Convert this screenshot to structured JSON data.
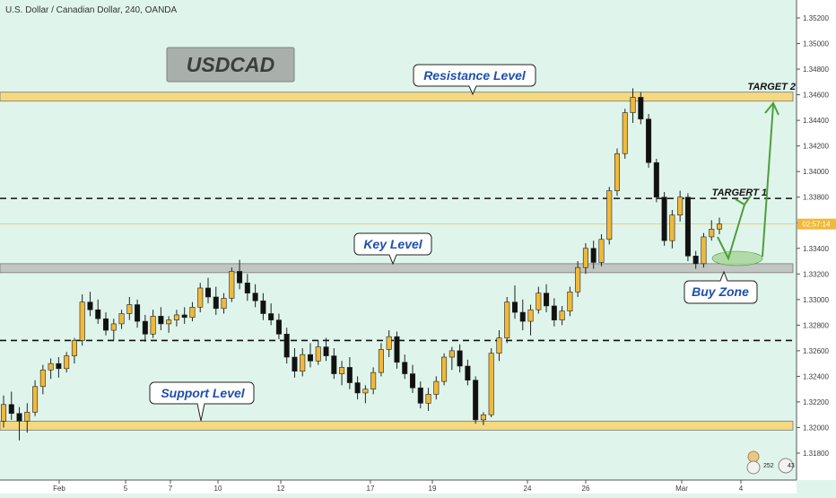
{
  "header": {
    "symbol_line": "U.S. Dollar / Canadian Dollar, 240, OANDA"
  },
  "title_box": {
    "text": "USDCAD"
  },
  "annotations": {
    "resistance": "Resistance Level",
    "key": "Key Level",
    "support": "Support Level",
    "buy_zone": "Buy Zone",
    "target1": "TARGERT 1",
    "target2": "TARGET 2"
  },
  "price_label": "02:57:14",
  "badges": {
    "likes": "252",
    "comments": "43"
  },
  "colors": {
    "background": "#dff5ec",
    "bull": "#f0b93a",
    "bear": "#111111",
    "zone_yellow": "#f5d77a",
    "zone_grey": "#bfc3c0",
    "arrow_green": "#4f9e3a",
    "callout_text": "#1e4fae"
  },
  "chart_data": {
    "type": "candlestick",
    "symbol": "USDCAD",
    "timeframe": "240",
    "source": "OANDA",
    "x_tick_labels": [
      "Feb",
      "5",
      "7",
      "10",
      "12",
      "17",
      "19",
      "24",
      "26",
      "Mar",
      "4"
    ],
    "y_tick_labels": [
      "1.35200",
      "1.35000",
      "1.34800",
      "1.34600",
      "1.34400",
      "1.34200",
      "1.34000",
      "1.33800",
      "1.33600",
      "1.33400",
      "1.33200",
      "1.33000",
      "1.32800",
      "1.32600",
      "1.32400",
      "1.32200",
      "1.32000",
      "1.31800"
    ],
    "ylim": [
      1.317,
      1.3533
    ],
    "levels": {
      "resistance": [
        1.3455,
        1.3462
      ],
      "key": [
        1.3321,
        1.3328
      ],
      "support": [
        1.3198,
        1.3205
      ],
      "target1": 1.3379,
      "lower_dashed": 1.3268,
      "current_price": 1.3359
    },
    "candles": [
      [
        1.3205,
        1.3225,
        1.32,
        1.3218
      ],
      [
        1.3218,
        1.3228,
        1.3206,
        1.3211
      ],
      [
        1.3211,
        1.3216,
        1.319,
        1.3205
      ],
      [
        1.3205,
        1.3219,
        1.3196,
        1.3212
      ],
      [
        1.3212,
        1.3237,
        1.3209,
        1.3232
      ],
      [
        1.3232,
        1.3249,
        1.3226,
        1.3245
      ],
      [
        1.3245,
        1.3254,
        1.3238,
        1.325
      ],
      [
        1.325,
        1.3255,
        1.3239,
        1.3246
      ],
      [
        1.3246,
        1.3259,
        1.3243,
        1.3256
      ],
      [
        1.3256,
        1.327,
        1.325,
        1.3268
      ],
      [
        1.3268,
        1.3304,
        1.3264,
        1.3298
      ],
      [
        1.3298,
        1.3306,
        1.3287,
        1.3292
      ],
      [
        1.3292,
        1.33,
        1.3281,
        1.3285
      ],
      [
        1.3285,
        1.329,
        1.3272,
        1.3276
      ],
      [
        1.3276,
        1.3285,
        1.3268,
        1.3281
      ],
      [
        1.3281,
        1.3292,
        1.3277,
        1.3289
      ],
      [
        1.3289,
        1.3302,
        1.3284,
        1.3296
      ],
      [
        1.3296,
        1.33,
        1.3278,
        1.3283
      ],
      [
        1.3283,
        1.3288,
        1.3267,
        1.3273
      ],
      [
        1.3273,
        1.3292,
        1.327,
        1.3287
      ],
      [
        1.3287,
        1.3294,
        1.3276,
        1.3281
      ],
      [
        1.3281,
        1.3287,
        1.3274,
        1.3284
      ],
      [
        1.3284,
        1.3292,
        1.3279,
        1.3288
      ],
      [
        1.3288,
        1.3294,
        1.3281,
        1.3286
      ],
      [
        1.3286,
        1.3298,
        1.3283,
        1.3294
      ],
      [
        1.3294,
        1.3313,
        1.329,
        1.3309
      ],
      [
        1.3309,
        1.3317,
        1.3297,
        1.3302
      ],
      [
        1.3302,
        1.331,
        1.3288,
        1.3293
      ],
      [
        1.3293,
        1.3305,
        1.3289,
        1.3301
      ],
      [
        1.3301,
        1.3325,
        1.3298,
        1.3322
      ],
      [
        1.3322,
        1.3331,
        1.3308,
        1.3313
      ],
      [
        1.3313,
        1.332,
        1.3299,
        1.3305
      ],
      [
        1.3305,
        1.3312,
        1.3294,
        1.3299
      ],
      [
        1.3299,
        1.3305,
        1.3284,
        1.3289
      ],
      [
        1.3289,
        1.3297,
        1.328,
        1.3284
      ],
      [
        1.3284,
        1.3289,
        1.3269,
        1.3273
      ],
      [
        1.3273,
        1.3278,
        1.325,
        1.3255
      ],
      [
        1.3255,
        1.3262,
        1.3239,
        1.3244
      ],
      [
        1.3244,
        1.3262,
        1.324,
        1.3257
      ],
      [
        1.3257,
        1.3266,
        1.3247,
        1.3252
      ],
      [
        1.3252,
        1.3268,
        1.3249,
        1.3263
      ],
      [
        1.3263,
        1.327,
        1.3252,
        1.3256
      ],
      [
        1.3256,
        1.3262,
        1.3238,
        1.3242
      ],
      [
        1.3242,
        1.3252,
        1.3233,
        1.3247
      ],
      [
        1.3247,
        1.3255,
        1.323,
        1.3235
      ],
      [
        1.3235,
        1.324,
        1.3222,
        1.3227
      ],
      [
        1.3227,
        1.3233,
        1.3219,
        1.323
      ],
      [
        1.323,
        1.3247,
        1.3226,
        1.3243
      ],
      [
        1.3243,
        1.3266,
        1.324,
        1.3261
      ],
      [
        1.3261,
        1.3276,
        1.3255,
        1.3271
      ],
      [
        1.3271,
        1.3275,
        1.3246,
        1.3251
      ],
      [
        1.3251,
        1.3257,
        1.3238,
        1.3242
      ],
      [
        1.3242,
        1.3249,
        1.3227,
        1.3231
      ],
      [
        1.3231,
        1.3236,
        1.3215,
        1.3219
      ],
      [
        1.3219,
        1.3231,
        1.3213,
        1.3226
      ],
      [
        1.3226,
        1.324,
        1.3222,
        1.3236
      ],
      [
        1.3236,
        1.3258,
        1.3233,
        1.3255
      ],
      [
        1.3255,
        1.3263,
        1.3245,
        1.326
      ],
      [
        1.326,
        1.3265,
        1.3243,
        1.3248
      ],
      [
        1.3248,
        1.3253,
        1.3233,
        1.3237
      ],
      [
        1.3237,
        1.324,
        1.3203,
        1.3206
      ],
      [
        1.3206,
        1.3212,
        1.3202,
        1.321
      ],
      [
        1.321,
        1.3262,
        1.3208,
        1.3258
      ],
      [
        1.3258,
        1.3276,
        1.3252,
        1.327
      ],
      [
        1.327,
        1.3302,
        1.3266,
        1.3298
      ],
      [
        1.3298,
        1.3311,
        1.3285,
        1.329
      ],
      [
        1.329,
        1.33,
        1.3276,
        1.3283
      ],
      [
        1.3283,
        1.3296,
        1.3272,
        1.3292
      ],
      [
        1.3292,
        1.331,
        1.3289,
        1.3305
      ],
      [
        1.3305,
        1.3312,
        1.329,
        1.3295
      ],
      [
        1.3295,
        1.3301,
        1.3279,
        1.3284
      ],
      [
        1.3284,
        1.3295,
        1.328,
        1.3291
      ],
      [
        1.3291,
        1.331,
        1.3287,
        1.3306
      ],
      [
        1.3306,
        1.333,
        1.3302,
        1.3325
      ],
      [
        1.3325,
        1.3344,
        1.332,
        1.334
      ],
      [
        1.334,
        1.3346,
        1.3324,
        1.3329
      ],
      [
        1.3329,
        1.3351,
        1.3326,
        1.3347
      ],
      [
        1.3347,
        1.3388,
        1.3343,
        1.3385
      ],
      [
        1.3385,
        1.3418,
        1.3381,
        1.3414
      ],
      [
        1.3414,
        1.3449,
        1.341,
        1.3446
      ],
      [
        1.3446,
        1.3465,
        1.3438,
        1.3458
      ],
      [
        1.3458,
        1.3462,
        1.3437,
        1.3441
      ],
      [
        1.3441,
        1.3445,
        1.3403,
        1.3407
      ],
      [
        1.3407,
        1.341,
        1.3376,
        1.338
      ],
      [
        1.338,
        1.3384,
        1.3342,
        1.3346
      ],
      [
        1.3346,
        1.337,
        1.334,
        1.3366
      ],
      [
        1.3366,
        1.3385,
        1.3361,
        1.338
      ],
      [
        1.338,
        1.3383,
        1.333,
        1.3334
      ],
      [
        1.3334,
        1.3338,
        1.3324,
        1.3328
      ],
      [
        1.3328,
        1.3352,
        1.3325,
        1.3349
      ],
      [
        1.3349,
        1.3362,
        1.3346,
        1.3355
      ],
      [
        1.3355,
        1.3364,
        1.3351,
        1.3359
      ]
    ]
  }
}
